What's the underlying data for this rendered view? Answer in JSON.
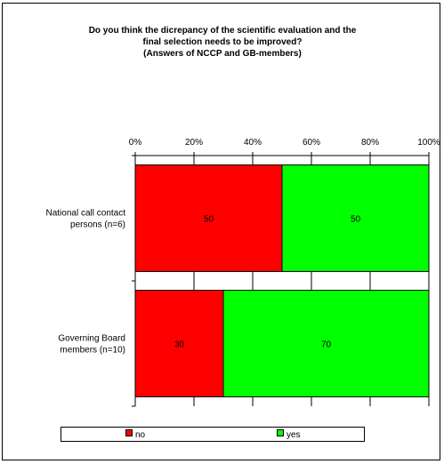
{
  "chart_data": {
    "type": "bar",
    "orientation": "horizontal",
    "stacked": true,
    "title_lines": [
      "Do you think the dicrepancy of the scientific evaluation and the",
      "final selection needs to be improved?",
      "(Answers of NCCP and GB-members)"
    ],
    "categories": [
      [
        "National call contact",
        "persons (n=6)"
      ],
      [
        "Governing Board",
        "members (n=10)"
      ]
    ],
    "series": [
      {
        "name": "no",
        "color": "#ff0000",
        "values": [
          50,
          30
        ]
      },
      {
        "name": "yes",
        "color": "#00ff00",
        "values": [
          50,
          70
        ]
      }
    ],
    "x_ticks": [
      "0%",
      "20%",
      "40%",
      "60%",
      "80%",
      "100%"
    ],
    "xlim": [
      0,
      100
    ],
    "axis_position": "top",
    "legend_position": "bottom"
  }
}
